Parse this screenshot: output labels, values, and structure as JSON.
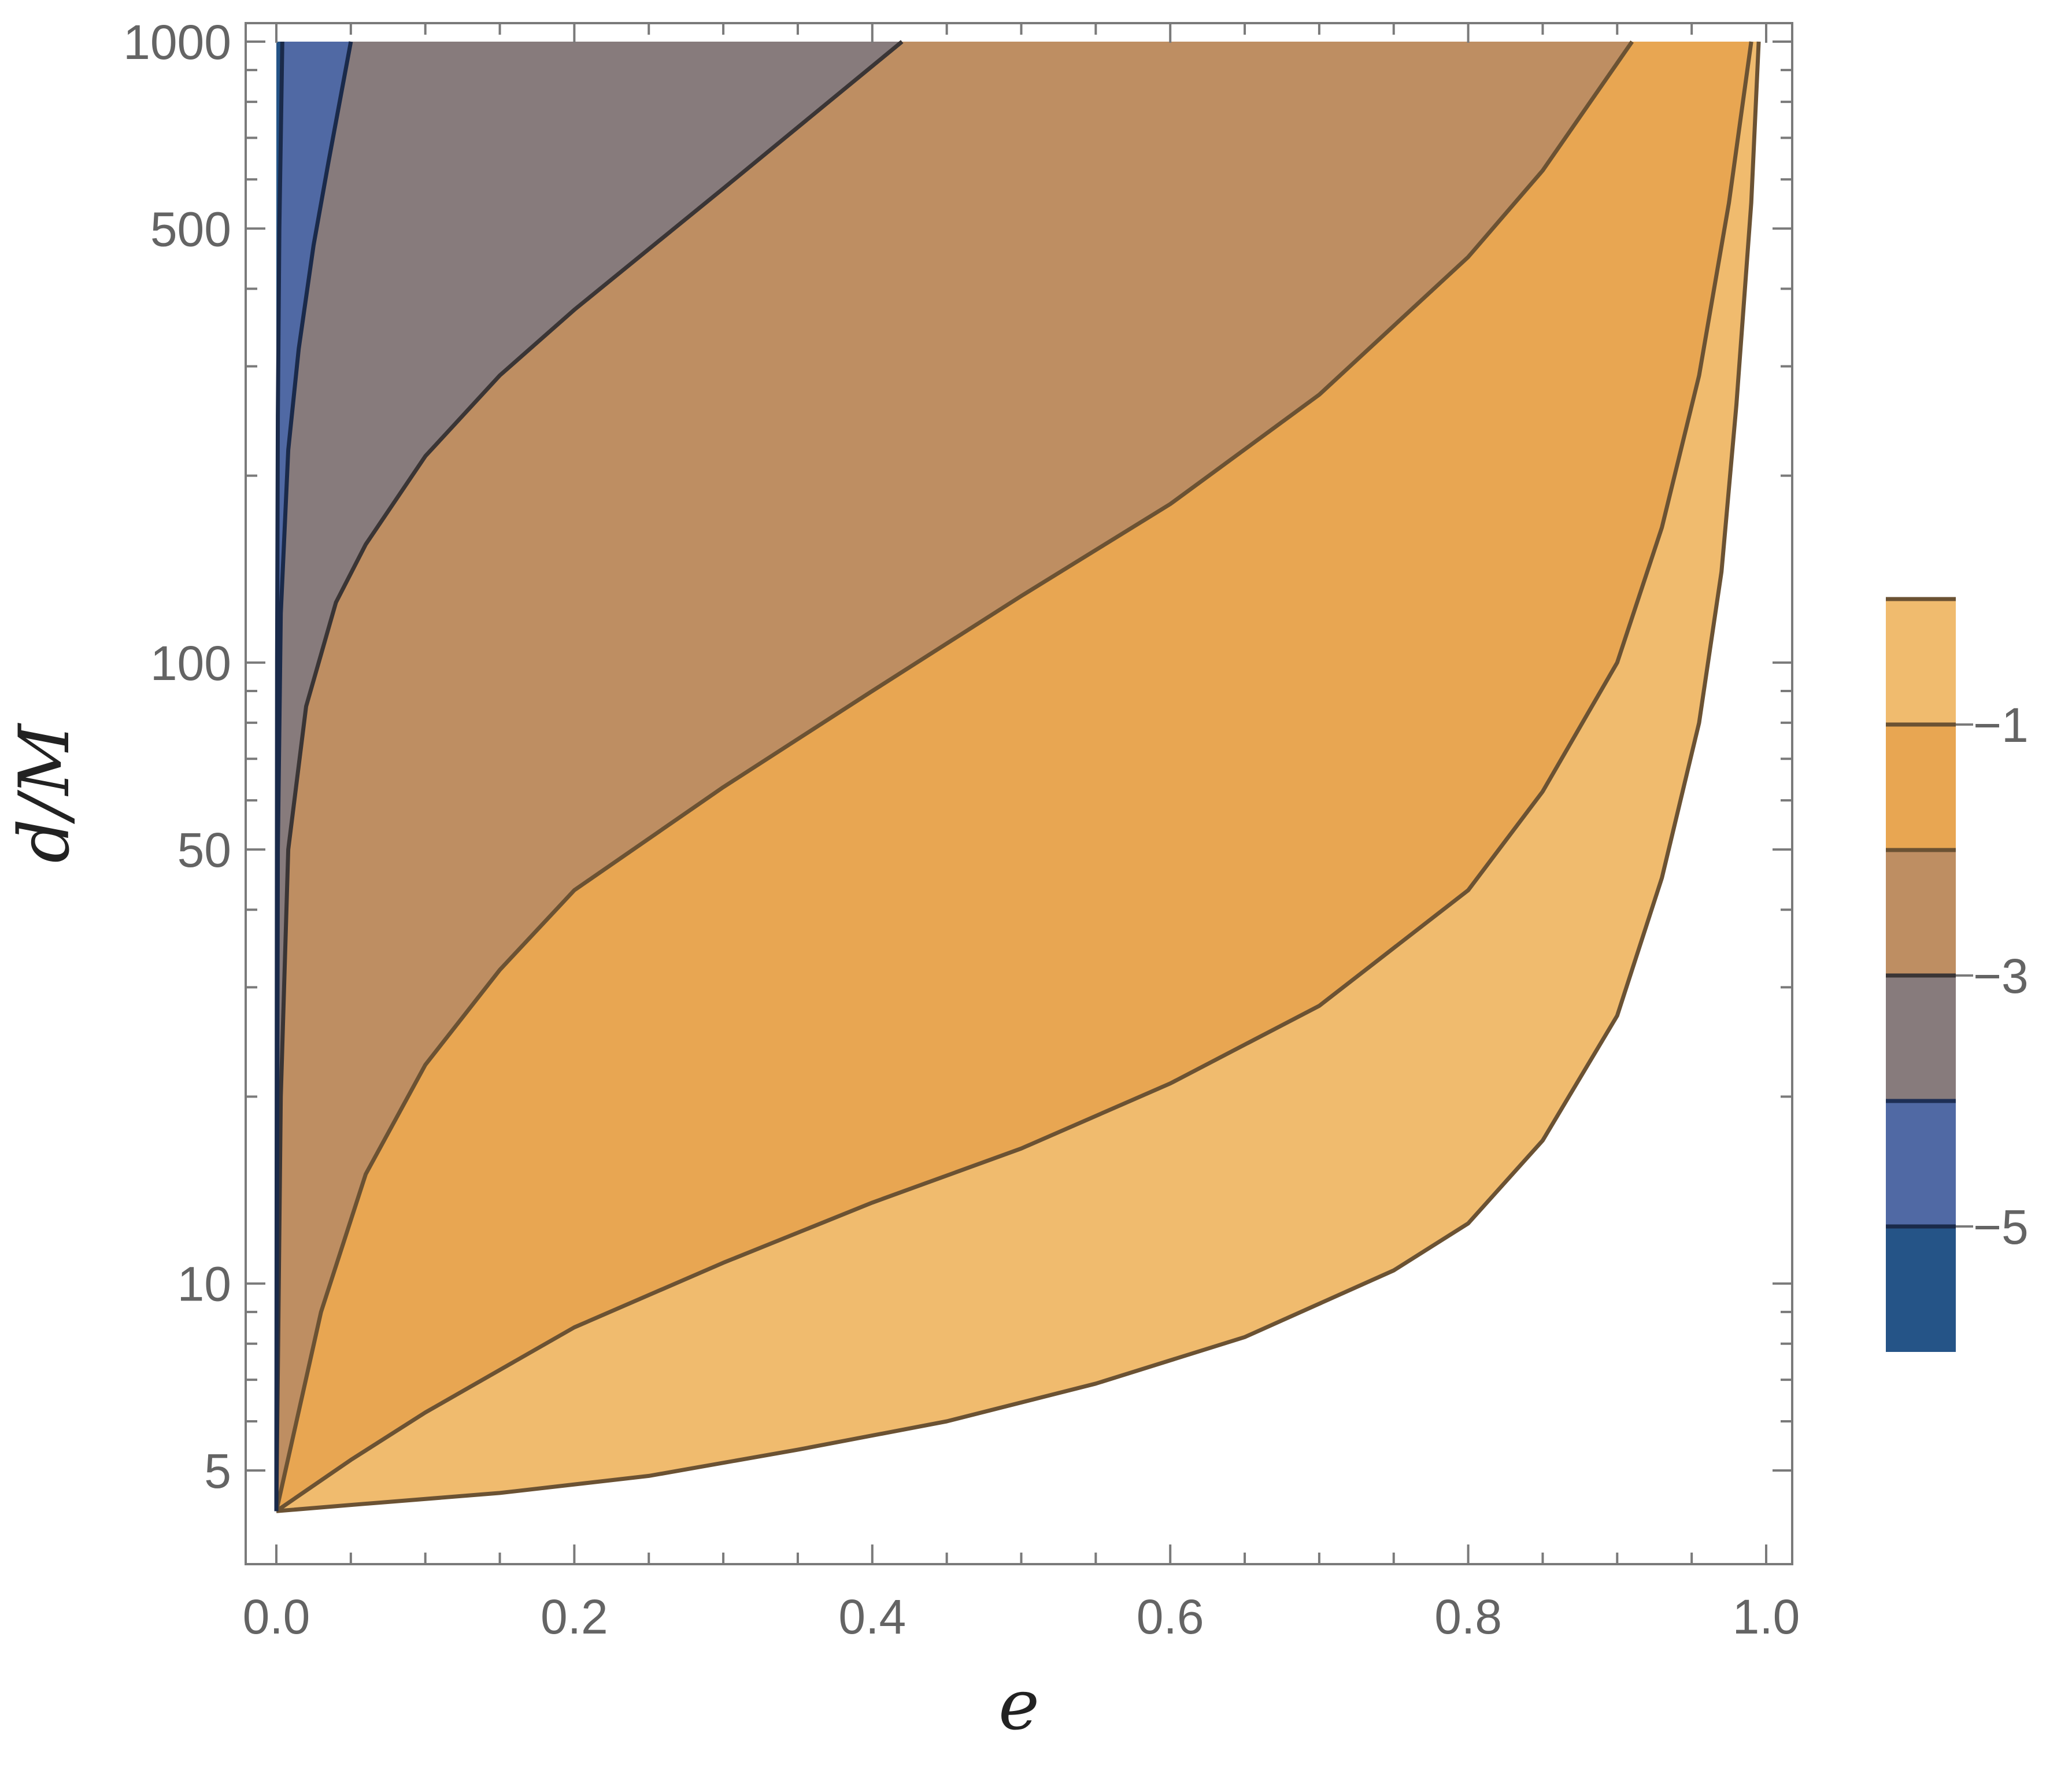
{
  "chart_data": {
    "type": "contour",
    "title": "",
    "xlabel": "e",
    "ylabel": "d/M",
    "xlim": [
      0,
      1
    ],
    "ylim": [
      4.2,
      1000
    ],
    "y_scale": "log",
    "grid": false,
    "legend_placement": "right",
    "x_ticks": [
      "0.0",
      "0.2",
      "0.4",
      "0.6",
      "0.8",
      "1.0"
    ],
    "x_tick_values": [
      0,
      0.2,
      0.4,
      0.6,
      0.8,
      1.0
    ],
    "y_ticks": [
      "5",
      "10",
      "50",
      "100",
      "500",
      "1000"
    ],
    "y_tick_values": [
      5,
      10,
      50,
      100,
      500,
      1000
    ],
    "colorbar_ticks": [
      "−1",
      "−3",
      "−5"
    ],
    "colorbar_tick_values": [
      -1,
      -3,
      -5
    ],
    "levels": [
      {
        "range": [
          -0.5,
          -1
        ],
        "color": "#f0bb6e"
      },
      {
        "range": [
          -1,
          -2
        ],
        "color": "#e8a652"
      },
      {
        "range": [
          -2,
          -3
        ],
        "color": "#be8e62"
      },
      {
        "range": [
          -3,
          -4
        ],
        "color": "#877b7c"
      },
      {
        "range": [
          -4,
          -5
        ],
        "color": "#5069a4"
      },
      {
        "range": [
          -5,
          -6
        ],
        "color": "#255487"
      }
    ],
    "contour_lines": [
      {
        "level": -0.5,
        "points": [
          [
            0.0,
            4.3
          ],
          [
            0.05,
            4.4
          ],
          [
            0.15,
            4.6
          ],
          [
            0.25,
            4.9
          ],
          [
            0.35,
            5.4
          ],
          [
            0.45,
            6.0
          ],
          [
            0.55,
            6.9
          ],
          [
            0.65,
            8.2
          ],
          [
            0.75,
            10.5
          ],
          [
            0.8,
            12.5
          ],
          [
            0.85,
            17
          ],
          [
            0.9,
            27
          ],
          [
            0.93,
            45
          ],
          [
            0.955,
            80
          ],
          [
            0.97,
            140
          ],
          [
            0.98,
            260
          ],
          [
            0.99,
            550
          ],
          [
            0.995,
            1000
          ]
        ]
      },
      {
        "level": -1,
        "points": [
          [
            0.0,
            4.3
          ],
          [
            0.05,
            5.2
          ],
          [
            0.1,
            6.2
          ],
          [
            0.2,
            8.5
          ],
          [
            0.3,
            10.8
          ],
          [
            0.4,
            13.5
          ],
          [
            0.5,
            16.5
          ],
          [
            0.6,
            21
          ],
          [
            0.7,
            28
          ],
          [
            0.8,
            43
          ],
          [
            0.85,
            62
          ],
          [
            0.9,
            100
          ],
          [
            0.93,
            165
          ],
          [
            0.955,
            290
          ],
          [
            0.975,
            550
          ],
          [
            0.99,
            1000
          ]
        ]
      },
      {
        "level": -2,
        "points": [
          [
            0.0,
            4.3
          ],
          [
            0.01,
            5.5
          ],
          [
            0.03,
            9.0
          ],
          [
            0.06,
            15
          ],
          [
            0.1,
            22.5
          ],
          [
            0.15,
            32
          ],
          [
            0.2,
            43
          ],
          [
            0.3,
            63
          ],
          [
            0.4,
            90
          ],
          [
            0.5,
            128
          ],
          [
            0.6,
            180
          ],
          [
            0.7,
            270
          ],
          [
            0.8,
            450
          ],
          [
            0.85,
            620
          ],
          [
            0.91,
            1000
          ]
        ]
      },
      {
        "level": -3,
        "points": [
          [
            0.0,
            4.3
          ],
          [
            0.003,
            20
          ],
          [
            0.008,
            50
          ],
          [
            0.02,
            85
          ],
          [
            0.04,
            125
          ],
          [
            0.06,
            155
          ],
          [
            0.1,
            215
          ],
          [
            0.15,
            290
          ],
          [
            0.2,
            370
          ],
          [
            0.3,
            580
          ],
          [
            0.42,
            1000
          ]
        ]
      },
      {
        "level": -4,
        "points": [
          [
            0.0,
            4.3
          ],
          [
            0.001,
            50
          ],
          [
            0.003,
            120
          ],
          [
            0.008,
            220
          ],
          [
            0.015,
            320
          ],
          [
            0.025,
            470
          ],
          [
            0.035,
            640
          ],
          [
            0.05,
            1000
          ]
        ]
      },
      {
        "level": -5,
        "points": [
          [
            0.0,
            4.3
          ],
          [
            0.0005,
            100
          ],
          [
            0.001,
            250
          ],
          [
            0.002,
            500
          ],
          [
            0.004,
            1000
          ]
        ]
      }
    ]
  }
}
